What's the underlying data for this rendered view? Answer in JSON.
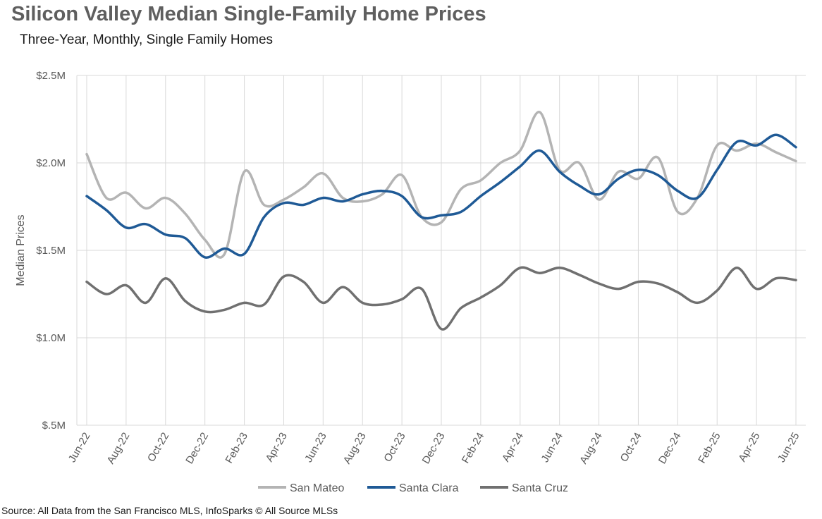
{
  "title": "Silicon Valley Median Single-Family Home Prices",
  "subtitle": "Three-Year, Monthly, Single Family Homes",
  "source": "Source: All Data from the San Francisco MLS, InfoSparks © All Source MLSs",
  "chart_data": {
    "type": "line",
    "title": "Silicon Valley Median Single-Family Home Prices",
    "subtitle": "Three-Year, Monthly, Single Family Homes",
    "xlabel": "",
    "ylabel": "Median Prices",
    "ylim": [
      500000,
      2500000
    ],
    "y_ticks": [
      500000,
      1000000,
      1500000,
      2000000,
      2500000
    ],
    "y_tick_labels": [
      "$.5M",
      "$1.0M",
      "$1.5M",
      "$2.0M",
      "$2.5M"
    ],
    "grid": true,
    "legend_position": "bottom",
    "categories": [
      "Jun-22",
      "Jul-22",
      "Aug-22",
      "Sep-22",
      "Oct-22",
      "Nov-22",
      "Dec-22",
      "Jan-23",
      "Feb-23",
      "Mar-23",
      "Apr-23",
      "May-23",
      "Jun-23",
      "Jul-23",
      "Aug-23",
      "Sep-23",
      "Oct-23",
      "Nov-23",
      "Dec-23",
      "Jan-24",
      "Feb-24",
      "Mar-24",
      "Apr-24",
      "May-24",
      "Jun-24",
      "Jul-24",
      "Aug-24",
      "Sep-24",
      "Oct-24",
      "Nov-24",
      "Dec-24",
      "Jan-25",
      "Feb-25",
      "Mar-25",
      "Apr-25",
      "May-25",
      "Jun-25"
    ],
    "x_tick_labels": [
      "Jun-22",
      "Aug-22",
      "Oct-22",
      "Dec-22",
      "Feb-23",
      "Apr-23",
      "Jun-23",
      "Aug-23",
      "Oct-23",
      "Dec-23",
      "Feb-24",
      "Apr-24",
      "Jun-24",
      "Aug-24",
      "Oct-24",
      "Dec-24",
      "Feb-25",
      "Apr-25",
      "Jun-25"
    ],
    "series": [
      {
        "name": "San Mateo",
        "color": "#b4b4b4",
        "values": [
          2050000,
          1800000,
          1830000,
          1740000,
          1800000,
          1710000,
          1560000,
          1480000,
          1950000,
          1760000,
          1790000,
          1860000,
          1940000,
          1800000,
          1780000,
          1820000,
          1930000,
          1690000,
          1660000,
          1850000,
          1900000,
          2000000,
          2070000,
          2290000,
          1960000,
          2000000,
          1790000,
          1950000,
          1910000,
          2030000,
          1720000,
          1800000,
          2100000,
          2070000,
          2110000,
          2060000,
          2010000
        ]
      },
      {
        "name": "Santa Clara",
        "color": "#1f5a96",
        "values": [
          1810000,
          1730000,
          1630000,
          1650000,
          1590000,
          1570000,
          1460000,
          1510000,
          1480000,
          1690000,
          1770000,
          1760000,
          1800000,
          1780000,
          1820000,
          1840000,
          1810000,
          1690000,
          1700000,
          1720000,
          1810000,
          1890000,
          1980000,
          2070000,
          1950000,
          1870000,
          1820000,
          1910000,
          1960000,
          1930000,
          1840000,
          1800000,
          1960000,
          2120000,
          2100000,
          2160000,
          2090000
        ]
      },
      {
        "name": "Santa Cruz",
        "color": "#707070",
        "values": [
          1320000,
          1250000,
          1300000,
          1200000,
          1340000,
          1210000,
          1150000,
          1160000,
          1200000,
          1190000,
          1350000,
          1320000,
          1200000,
          1290000,
          1200000,
          1190000,
          1220000,
          1280000,
          1050000,
          1170000,
          1230000,
          1300000,
          1400000,
          1370000,
          1400000,
          1360000,
          1310000,
          1280000,
          1320000,
          1310000,
          1260000,
          1200000,
          1270000,
          1400000,
          1280000,
          1340000,
          1330000
        ]
      }
    ]
  }
}
